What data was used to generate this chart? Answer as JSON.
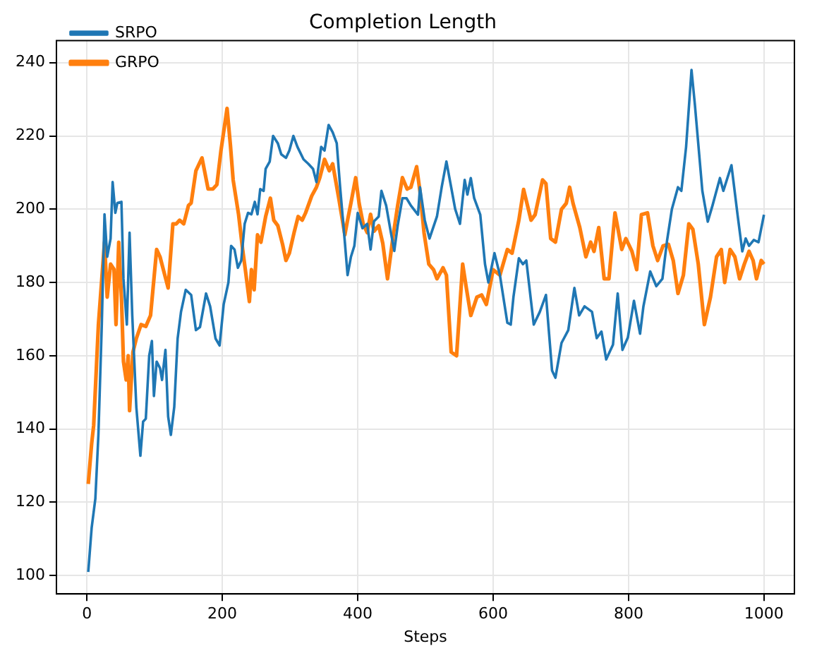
{
  "chart_data": {
    "type": "line",
    "title": "Completion Length",
    "xlabel": "Steps",
    "xlim": [
      -45,
      1045
    ],
    "ylim": [
      95,
      246
    ],
    "xticks": [
      0,
      200,
      400,
      600,
      800,
      1000
    ],
    "yticks": [
      100,
      120,
      140,
      160,
      180,
      200,
      220,
      240
    ],
    "grid": true,
    "legend": "top left",
    "series": [
      {
        "name": "SRPO",
        "color": "#1f77b4",
        "x": [
          2,
          7,
          12.5,
          17,
          22,
          26,
          30,
          35,
          38,
          42,
          45,
          51,
          54,
          59,
          63,
          67,
          73,
          79,
          83,
          87,
          92,
          96,
          99,
          103,
          108,
          111,
          116,
          120,
          124,
          129,
          134,
          139,
          146,
          154,
          161,
          167,
          176,
          182,
          190,
          196,
          202,
          209,
          213,
          218,
          223,
          228,
          233,
          238,
          243,
          248,
          252,
          256,
          261,
          264,
          270,
          275,
          282,
          287,
          294,
          299,
          305,
          311,
          320,
          327,
          334,
          339,
          346,
          351,
          357,
          363,
          369,
          374,
          381,
          385,
          390,
          395,
          400,
          407,
          414,
          419,
          424,
          431,
          435,
          442,
          449,
          454,
          459,
          466,
          472,
          478.5,
          489,
          492,
          499,
          506,
          517,
          524,
          531,
          538,
          544,
          551,
          558,
          562,
          567,
          572,
          581,
          588,
          593,
          602,
          610,
          621,
          626,
          630,
          638,
          644,
          649,
          660,
          669,
          678,
          687,
          692,
          701,
          711,
          720,
          727,
          735,
          746,
          753,
          760,
          767,
          777,
          784,
          791,
          799,
          808,
          817,
          822,
          832,
          841,
          850,
          857,
          864,
          873,
          878,
          885,
          893,
          898,
          909,
          917,
          924,
          935,
          940,
          952,
          961,
          968,
          973,
          978,
          985,
          992,
          1000
        ],
        "values": [
          101,
          113,
          121,
          138.5,
          168.5,
          198.6,
          187,
          192,
          207.4,
          199,
          201.7,
          202,
          181,
          168.5,
          193.6,
          171,
          146,
          132.7,
          142,
          142.8,
          160,
          164,
          149,
          158.4,
          156.6,
          153.4,
          161.6,
          143.4,
          138.4,
          146,
          164.7,
          172,
          178,
          176.6,
          167,
          167.8,
          177,
          173.5,
          164.7,
          162.8,
          174,
          180,
          190,
          189,
          184,
          186,
          196,
          199,
          198.6,
          202,
          198.6,
          205.5,
          205,
          211,
          213,
          220,
          218,
          215,
          214,
          216,
          220,
          217,
          213.6,
          212.4,
          211,
          207.4,
          217,
          216,
          223,
          221,
          218,
          206,
          191,
          182,
          187,
          190,
          199,
          194.8,
          196,
          189,
          196.7,
          198,
          205,
          201,
          193.6,
          188.6,
          195.5,
          203,
          203,
          201,
          198.5,
          206,
          197,
          192,
          198,
          206,
          213,
          206,
          200,
          196,
          208,
          204,
          208.5,
          203,
          198.5,
          185,
          180,
          188,
          182,
          169,
          168.5,
          176,
          186.6,
          185,
          186,
          168.5,
          172,
          176.6,
          156,
          154,
          163.5,
          167,
          178.5,
          171,
          173.5,
          172,
          164.8,
          166.6,
          159,
          163,
          177,
          161.6,
          165,
          175,
          166,
          173.5,
          183,
          179,
          181,
          191.6,
          200,
          206,
          205,
          217,
          238,
          228.5,
          205,
          196.6,
          201,
          208.5,
          205,
          212,
          198.5,
          188.5,
          192,
          190,
          191.6,
          191,
          198.5
        ]
      },
      {
        "name": "GRPO",
        "color": "#ff7f0e",
        "x": [
          2,
          7,
          10,
          17,
          22,
          26,
          30,
          35,
          40,
          43,
          47,
          51,
          54,
          58,
          61,
          63,
          68,
          73,
          80,
          87,
          94,
          103,
          108,
          115,
          120,
          127,
          132,
          137,
          143,
          150,
          154,
          161,
          170,
          179,
          186,
          192,
          198,
          207,
          212,
          216,
          224,
          230,
          234,
          240,
          243,
          247,
          252,
          257,
          264,
          271,
          276,
          282,
          289,
          294,
          299,
          306,
          312,
          318,
          323,
          332,
          339,
          344,
          351,
          358,
          363,
          372,
          381,
          385,
          390,
          397,
          402,
          408,
          414,
          419,
          424,
          431,
          437,
          444,
          452,
          459,
          466,
          473,
          478.5,
          487,
          492,
          498,
          505,
          512,
          517,
          526,
          531,
          538,
          546,
          555,
          560,
          567,
          576,
          583,
          590,
          600,
          610,
          621,
          628,
          638,
          645,
          656,
          662,
          673,
          678,
          685,
          692,
          701,
          708,
          713,
          718,
          728,
          737,
          744,
          749,
          756,
          764,
          771,
          780,
          790,
          796,
          805,
          812,
          819,
          828,
          836,
          843,
          851,
          859,
          866,
          873,
          881,
          889,
          895,
          903,
          912,
          921,
          930,
          937,
          942,
          950,
          957,
          964,
          971,
          978,
          984,
          989,
          996,
          1000
        ],
        "values": [
          125,
          136,
          141,
          168.5,
          181,
          191,
          176,
          185,
          183.6,
          168.5,
          191,
          176,
          158.4,
          153.4,
          160,
          145,
          161,
          164.7,
          168.5,
          168,
          171,
          189,
          187,
          182,
          178.5,
          196,
          196,
          197,
          196,
          201,
          201.7,
          210.5,
          214,
          205.5,
          205.5,
          206.7,
          216,
          227.5,
          217.4,
          208,
          198.6,
          189,
          183.5,
          174.8,
          183.5,
          178,
          193,
          191,
          198,
          203,
          197,
          195.5,
          190.4,
          186,
          188,
          193.6,
          198,
          197,
          199,
          203.6,
          206,
          208.6,
          213.6,
          210.5,
          212.4,
          203,
          193,
          197,
          201.7,
          208.6,
          201.7,
          196,
          193.6,
          198.6,
          194,
          195.5,
          190.7,
          181,
          192.3,
          201,
          208.6,
          205.5,
          206,
          211.6,
          204.8,
          193.5,
          185,
          183.5,
          181,
          184,
          182,
          161,
          160,
          185,
          179,
          171,
          176,
          176.6,
          174,
          183.5,
          182,
          189,
          188,
          197,
          205.4,
          197,
          198.5,
          208,
          207,
          192,
          191,
          200,
          201.6,
          206,
          201.6,
          195,
          187,
          191,
          188.5,
          195,
          181,
          181,
          199,
          189,
          192,
          188.5,
          183.5,
          198.5,
          199,
          190,
          186,
          190,
          190.4,
          186,
          177,
          182,
          196,
          194.5,
          185,
          168.5,
          176,
          187,
          189,
          180,
          189,
          187,
          181,
          185,
          188.5,
          186,
          181,
          186,
          185
        ]
      }
    ]
  }
}
